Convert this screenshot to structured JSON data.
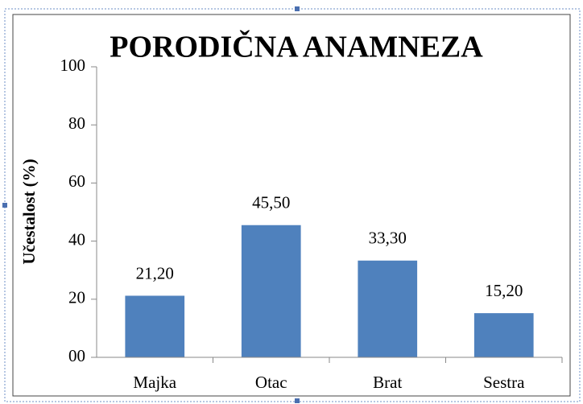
{
  "chart_data": {
    "type": "bar",
    "title": "PORODIČNA ANAMNEZA",
    "y_label": "Učestalost (%)",
    "categories": [
      "Majka",
      "Otac",
      "Brat",
      "Sestra"
    ],
    "values": [
      21.2,
      45.5,
      33.3,
      15.2
    ],
    "value_labels": [
      "21,20",
      "45,50",
      "33,30",
      "15,20"
    ],
    "color": "#4f81bd",
    "ylim": [
      0,
      100
    ],
    "yticks": [
      {
        "value": 0,
        "label": "00"
      },
      20,
      40,
      60,
      80,
      100
    ],
    "grid": false
  }
}
